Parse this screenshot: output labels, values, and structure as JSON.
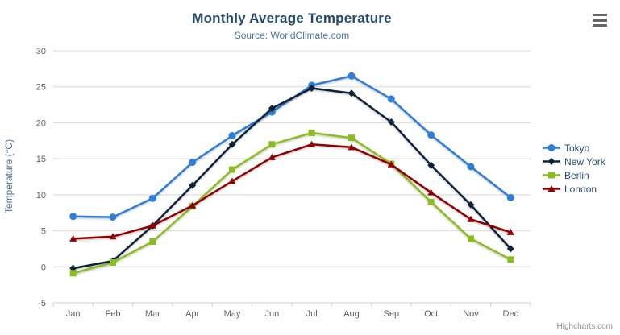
{
  "chart_data": {
    "type": "line",
    "title": "Monthly Average Temperature",
    "subtitle": "Source: WorldClimate.com",
    "xlabel": "",
    "ylabel": "Temperature (°C)",
    "categories": [
      "Jan",
      "Feb",
      "Mar",
      "Apr",
      "May",
      "Jun",
      "Jul",
      "Aug",
      "Sep",
      "Oct",
      "Nov",
      "Dec"
    ],
    "ylim": [
      -5,
      30
    ],
    "yticks": [
      -5,
      0,
      5,
      10,
      15,
      20,
      25,
      30
    ],
    "grid": true,
    "legend_position": "right",
    "series": [
      {
        "name": "Tokyo",
        "color": "#2f7ed8",
        "marker": "circle",
        "values": [
          7.0,
          6.9,
          9.5,
          14.5,
          18.2,
          21.5,
          25.2,
          26.5,
          23.3,
          18.3,
          13.9,
          9.6
        ]
      },
      {
        "name": "New York",
        "color": "#0d233a",
        "marker": "diamond",
        "values": [
          -0.2,
          0.8,
          5.7,
          11.3,
          17.0,
          22.0,
          24.8,
          24.1,
          20.1,
          14.1,
          8.6,
          2.5
        ]
      },
      {
        "name": "Berlin",
        "color": "#8bbc21",
        "marker": "square",
        "values": [
          -0.9,
          0.6,
          3.5,
          8.4,
          13.5,
          17.0,
          18.6,
          17.9,
          14.3,
          9.0,
          3.9,
          1.0
        ]
      },
      {
        "name": "London",
        "color": "#910000",
        "marker": "triangle",
        "values": [
          3.9,
          4.2,
          5.7,
          8.5,
          11.9,
          15.2,
          17.0,
          16.6,
          14.2,
          10.3,
          6.6,
          4.8
        ]
      }
    ]
  },
  "export_menu": {
    "icon": "hamburger-icon"
  },
  "credits": {
    "label": "Highcharts.com"
  }
}
